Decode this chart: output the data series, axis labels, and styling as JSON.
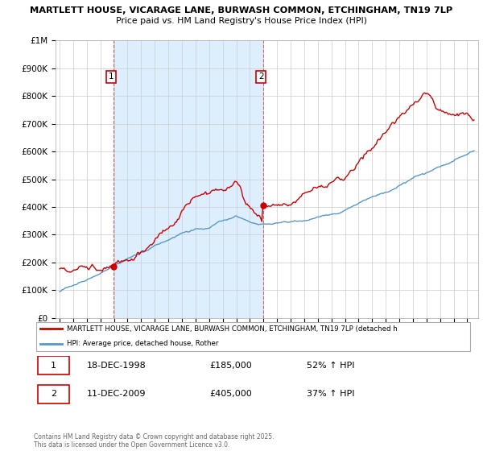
{
  "title_line1": "MARTLETT HOUSE, VICARAGE LANE, BURWASH COMMON, ETCHINGHAM, TN19 7LP",
  "title_line2": "Price paid vs. HM Land Registry's House Price Index (HPI)",
  "legend_red": "MARTLETT HOUSE, VICARAGE LANE, BURWASH COMMON, ETCHINGHAM, TN19 7LP (detached h",
  "legend_blue": "HPI: Average price, detached house, Rother",
  "footer": "Contains HM Land Registry data © Crown copyright and database right 2025.\nThis data is licensed under the Open Government Licence v3.0.",
  "sale1_date": "18-DEC-1998",
  "sale1_price": 185000,
  "sale1_hpi": "52% ↑ HPI",
  "sale1_label": "1",
  "sale1_year": 1998.96,
  "sale2_date": "11-DEC-2009",
  "sale2_price": 405000,
  "sale2_hpi": "37% ↑ HPI",
  "sale2_label": "2",
  "sale2_year": 2009.96,
  "red_color": "#cc0000",
  "blue_color": "#5599cc",
  "shade_color": "#ddeeff",
  "background_color": "#ffffff",
  "grid_color": "#cccccc",
  "ylim": [
    0,
    1000000
  ],
  "yticks": [
    0,
    100000,
    200000,
    300000,
    400000,
    500000,
    600000,
    700000,
    800000,
    900000,
    1000000
  ],
  "ytick_labels": [
    "£0",
    "£100K",
    "£200K",
    "£300K",
    "£400K",
    "£500K",
    "£600K",
    "£700K",
    "£800K",
    "£900K",
    "£1M"
  ]
}
